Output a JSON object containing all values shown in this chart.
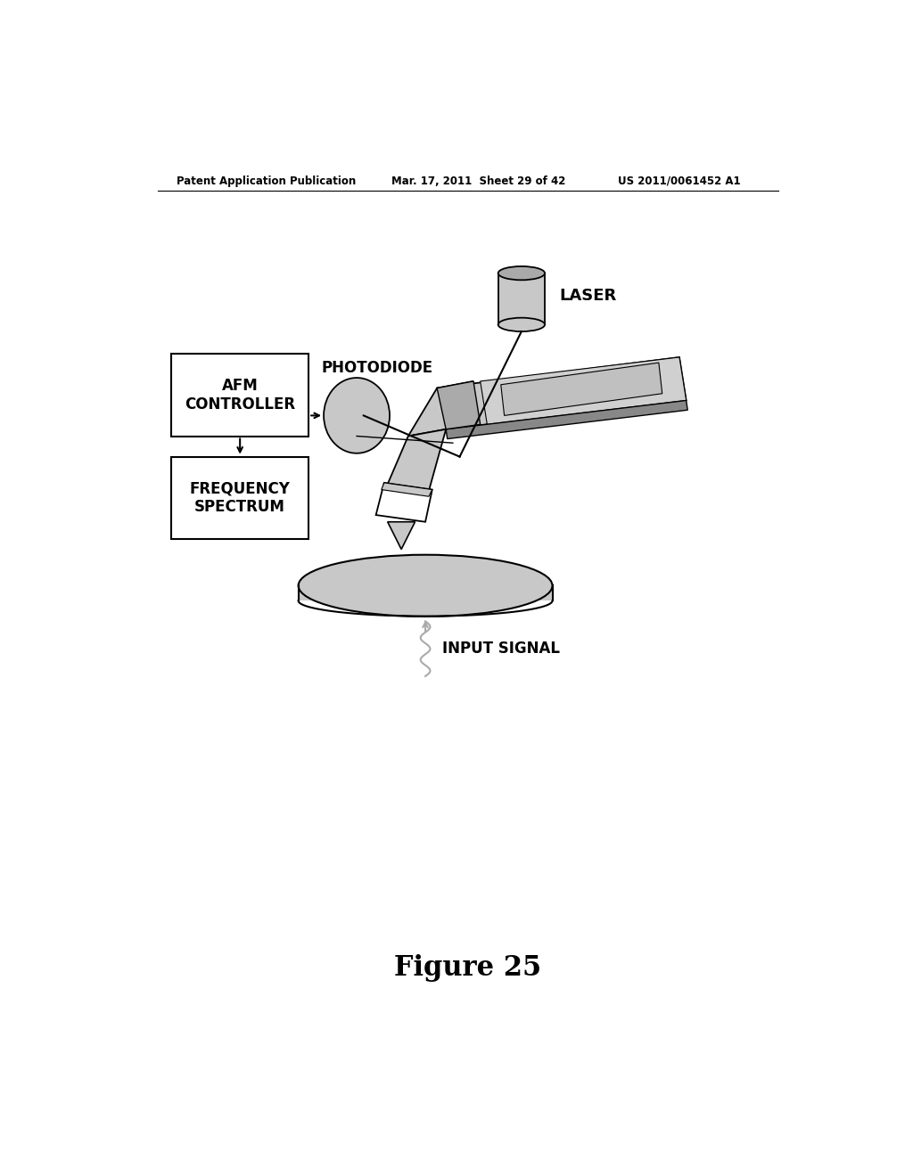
{
  "background_color": "#ffffff",
  "header_left": "Patent Application Publication",
  "header_center": "Mar. 17, 2011  Sheet 29 of 42",
  "header_right": "US 2011/0061452 A1",
  "figure_label": "Figure 25",
  "labels": {
    "laser": "LASER",
    "photodiode": "PHOTODIODE",
    "afm_controller": "AFM\nCONTROLLER",
    "frequency_spectrum": "FREQUENCY\nSPECTRUM",
    "input_signal": "INPUT SIGNAL"
  },
  "light_gray": "#c8c8c8",
  "mid_gray": "#aaaaaa",
  "dark_gray": "#888888",
  "very_light_gray": "#e0e0e0"
}
